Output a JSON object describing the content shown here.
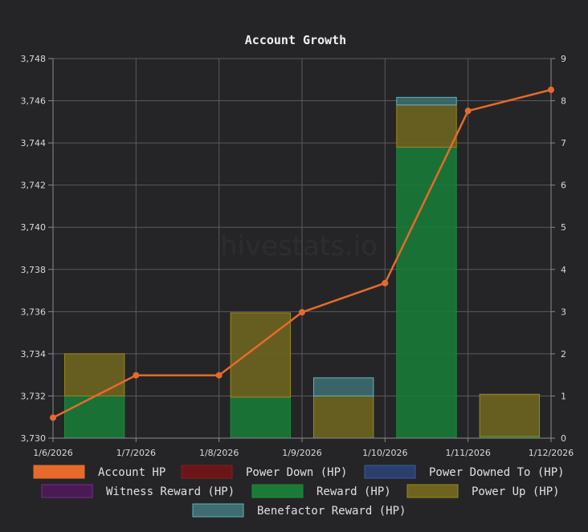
{
  "chart_data": {
    "type": "bar",
    "title": "Account Growth",
    "watermark": "hivestats.io",
    "categories": [
      "1/6/2026",
      "1/7/2026",
      "1/8/2026",
      "1/9/2026",
      "1/10/2026",
      "1/11/2026",
      "1/12/2026"
    ],
    "y_left": {
      "min": 3730,
      "max": 3748,
      "step": 2
    },
    "y_right": {
      "min": 0,
      "max": 9,
      "step": 1
    },
    "grid": true,
    "legend_position": "bottom",
    "series": [
      {
        "name": "Account HP",
        "type": "line",
        "axis": "left",
        "color": "#e66a2c",
        "values": [
          3730.97,
          3732.98,
          3732.98,
          3735.97,
          3737.35,
          3745.52,
          3746.52
        ]
      },
      {
        "name": "Power Down (HP)",
        "type": "bar",
        "axis": "right",
        "color": "#8b1a1a",
        "fill": "#6b1518",
        "values": [
          0,
          0,
          0,
          0,
          0,
          0,
          0
        ]
      },
      {
        "name": "Power Downed To (HP)",
        "type": "bar",
        "axis": "right",
        "color": "#3a5a9a",
        "fill": "#2a3f6e",
        "values": [
          0,
          0,
          0,
          0,
          0,
          0,
          0
        ]
      },
      {
        "name": "Witness Reward (HP)",
        "type": "bar",
        "axis": "right",
        "color": "#7a2a8a",
        "fill": "#4a1a55",
        "values": [
          0,
          0,
          0,
          0,
          0,
          0,
          0
        ]
      },
      {
        "name": "Reward (HP)",
        "type": "bar",
        "axis": "right",
        "color": "#1f8a3a",
        "fill": "#1a7a36",
        "values": [
          1.0,
          0,
          0.97,
          0,
          6.9,
          0.04,
          0.1
        ]
      },
      {
        "name": "Power Up (HP)",
        "type": "bar",
        "axis": "right",
        "color": "#9a8a1a",
        "fill": "#6e6420",
        "values": [
          1.0,
          0,
          2.0,
          1.0,
          1.0,
          1.0,
          0
        ]
      },
      {
        "name": "Benefactor Reward (HP)",
        "type": "bar",
        "axis": "right",
        "color": "#5ab8b8",
        "fill": "#3e6c70",
        "values": [
          0,
          0,
          0,
          0.43,
          0.18,
          0,
          0
        ]
      }
    ]
  }
}
